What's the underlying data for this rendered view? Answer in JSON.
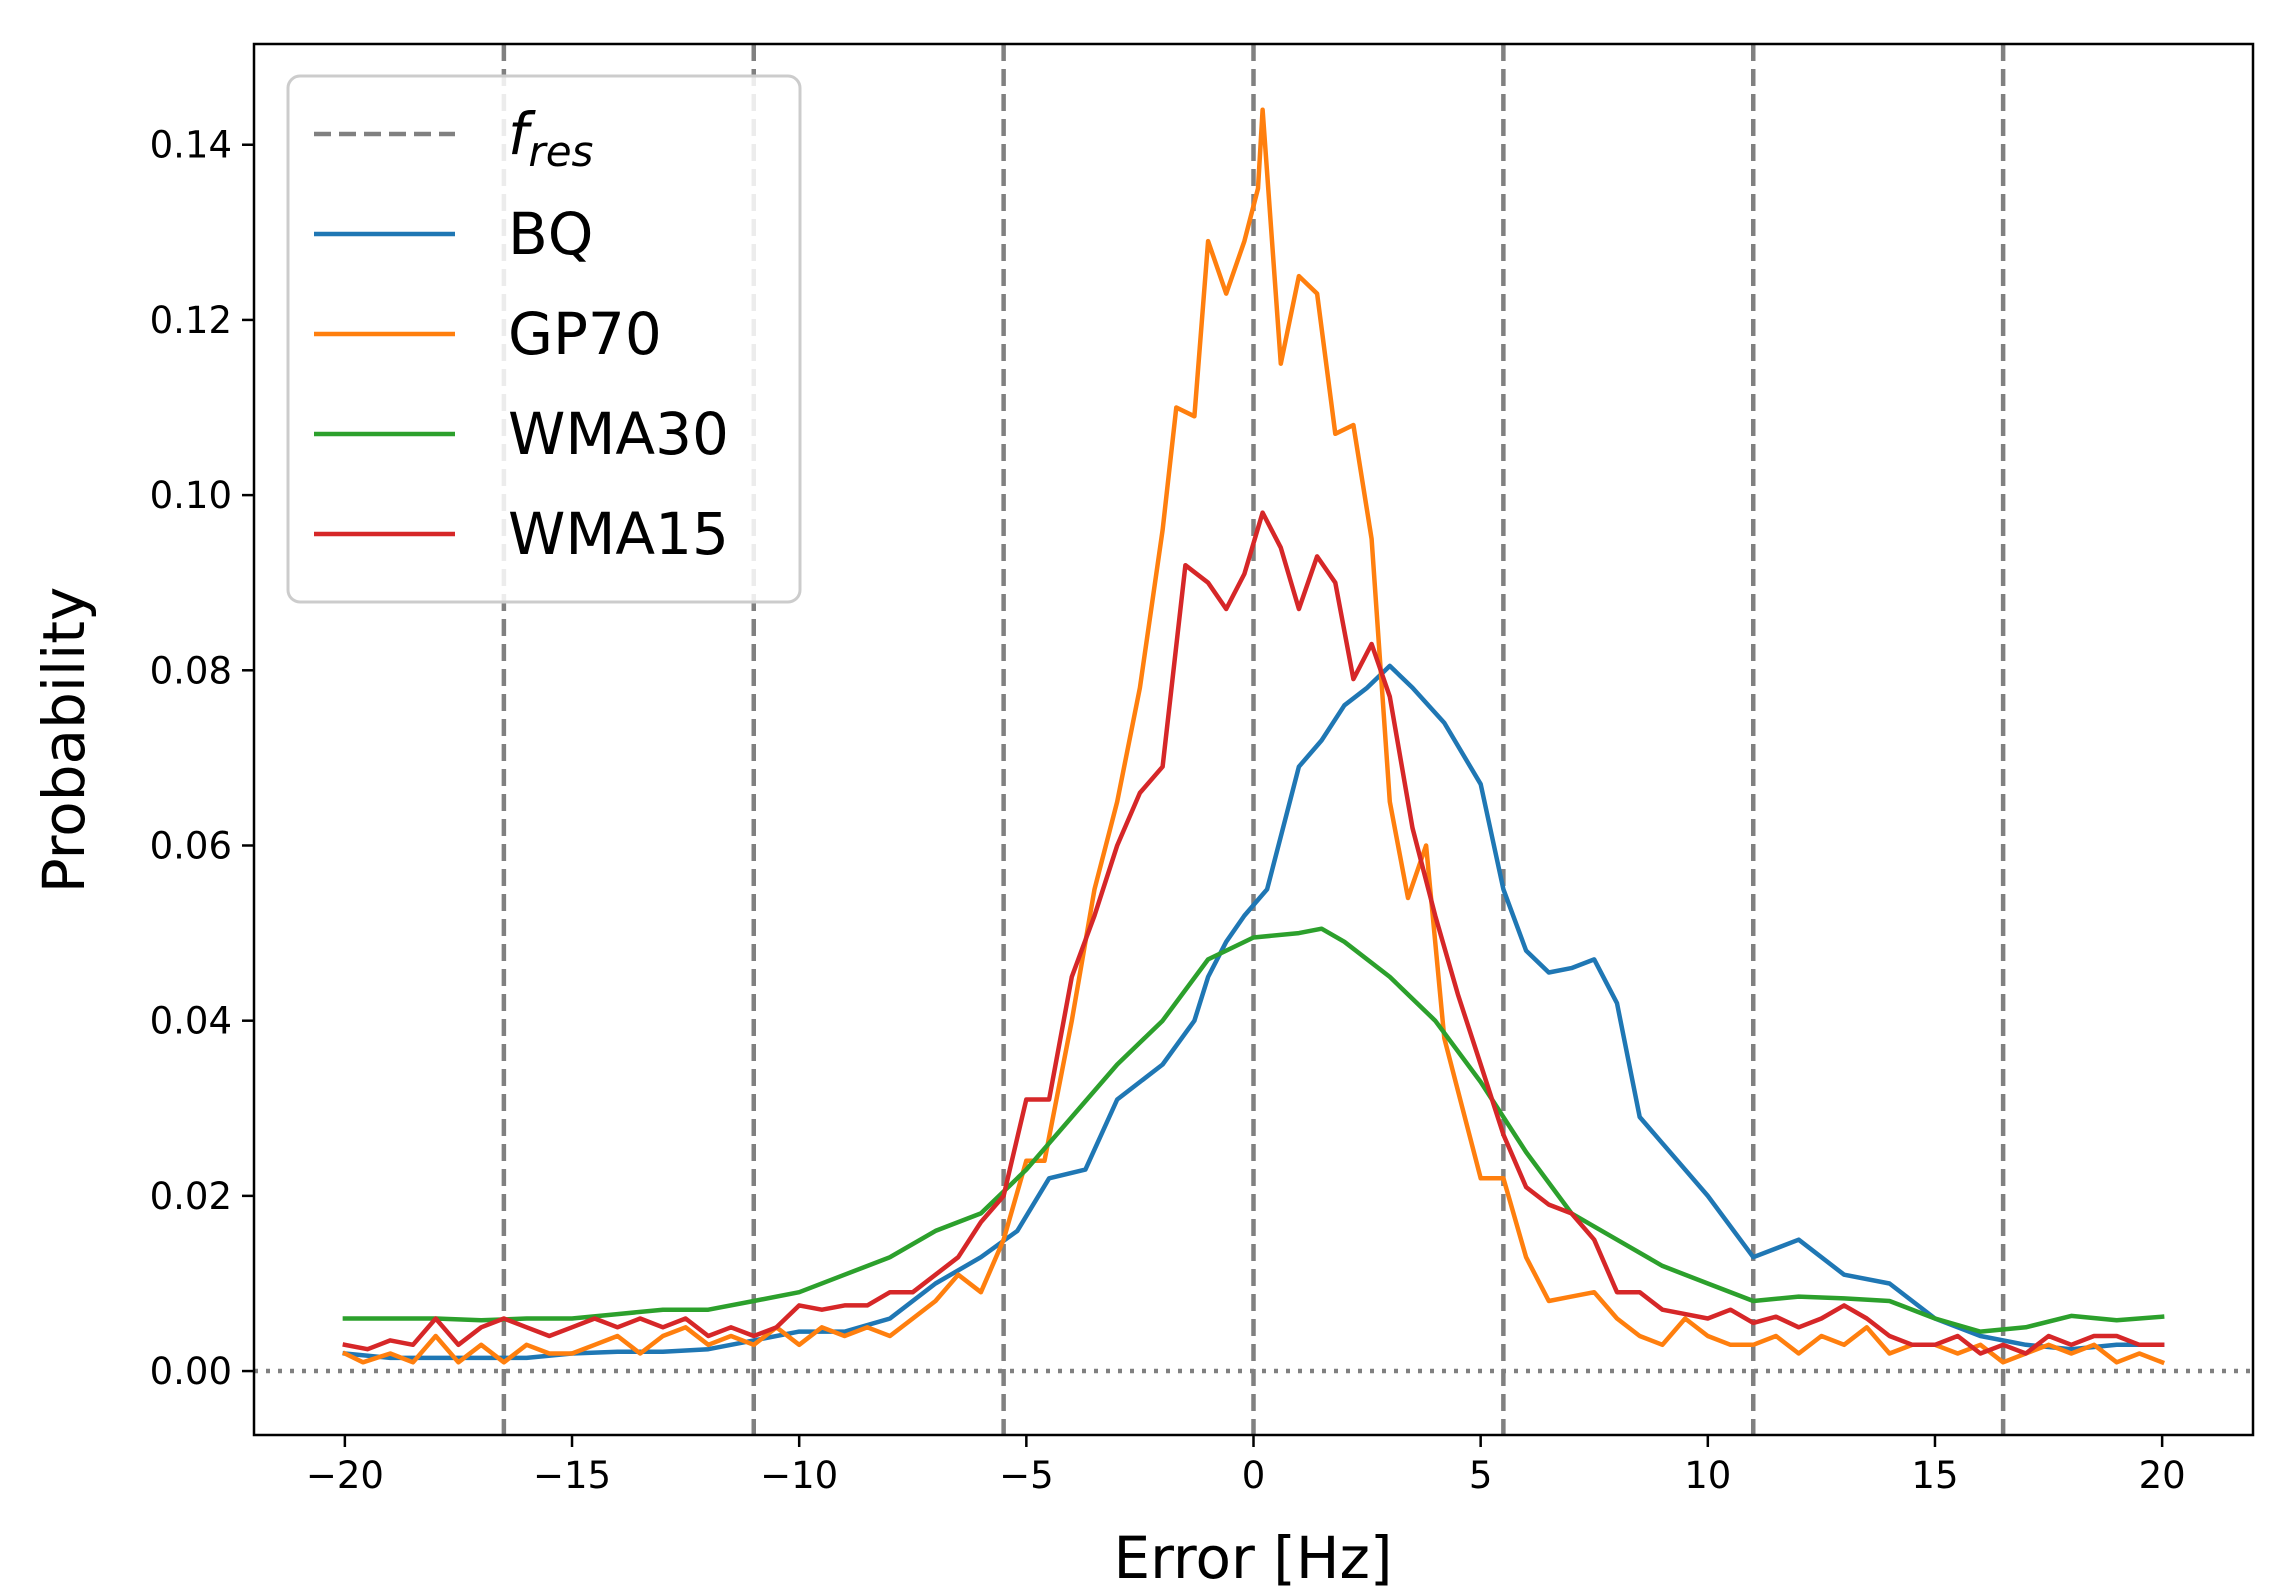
{
  "chart_data": {
    "type": "line",
    "title": "",
    "xlabel": "Error [Hz]",
    "ylabel": "Probability",
    "xlim": [
      -22,
      22
    ],
    "ylim": [
      -0.0073,
      0.1515
    ],
    "xticks": [
      -20,
      -15,
      -10,
      -5,
      0,
      5,
      10,
      15,
      20
    ],
    "xtick_labels": [
      "−20",
      "−15",
      "−10",
      "−5",
      "0",
      "5",
      "10",
      "15",
      "20"
    ],
    "yticks": [
      0.0,
      0.02,
      0.04,
      0.06,
      0.08,
      0.1,
      0.12,
      0.14
    ],
    "ytick_labels": [
      "0.00",
      "0.02",
      "0.04",
      "0.06",
      "0.08",
      "0.10",
      "0.12",
      "0.14"
    ],
    "grid": false,
    "legend_position": "top-left",
    "reference_lines": {
      "f_res_label_base": "f",
      "f_res_label_sub": "res",
      "color": "#808080",
      "x": [
        -16.5,
        -11,
        -5.5,
        0,
        5.5,
        11,
        16.5
      ],
      "zero_line_y": 0
    },
    "series": [
      {
        "name": "BQ",
        "color": "#1f77b4",
        "points": [
          [
            -20,
            0.002
          ],
          [
            -19,
            0.0015
          ],
          [
            -18,
            0.0015
          ],
          [
            -17,
            0.0015
          ],
          [
            -16,
            0.0015
          ],
          [
            -15,
            0.002
          ],
          [
            -14,
            0.0022
          ],
          [
            -13,
            0.0022
          ],
          [
            -12,
            0.0025
          ],
          [
            -11,
            0.0035
          ],
          [
            -10,
            0.0045
          ],
          [
            -9,
            0.0045
          ],
          [
            -8,
            0.006
          ],
          [
            -7,
            0.01
          ],
          [
            -6,
            0.013
          ],
          [
            -5.2,
            0.016
          ],
          [
            -4.5,
            0.022
          ],
          [
            -3.7,
            0.023
          ],
          [
            -3,
            0.031
          ],
          [
            -2,
            0.035
          ],
          [
            -1.3,
            0.04
          ],
          [
            -1,
            0.045
          ],
          [
            -0.6,
            0.049
          ],
          [
            -0.2,
            0.052
          ],
          [
            0.3,
            0.055
          ],
          [
            0.7,
            0.063
          ],
          [
            1,
            0.069
          ],
          [
            1.5,
            0.072
          ],
          [
            2,
            0.076
          ],
          [
            2.5,
            0.078
          ],
          [
            3,
            0.0805
          ],
          [
            3.5,
            0.078
          ],
          [
            4.2,
            0.074
          ],
          [
            5,
            0.067
          ],
          [
            5.5,
            0.055
          ],
          [
            6,
            0.048
          ],
          [
            6.5,
            0.0455
          ],
          [
            7,
            0.046
          ],
          [
            7.5,
            0.047
          ],
          [
            8,
            0.042
          ],
          [
            8.5,
            0.029
          ],
          [
            9,
            0.026
          ],
          [
            10,
            0.02
          ],
          [
            11,
            0.013
          ],
          [
            12,
            0.015
          ],
          [
            13,
            0.011
          ],
          [
            14,
            0.01
          ],
          [
            15,
            0.006
          ],
          [
            16,
            0.004
          ],
          [
            17,
            0.003
          ],
          [
            18,
            0.0025
          ],
          [
            19,
            0.003
          ],
          [
            20,
            0.003
          ]
        ]
      },
      {
        "name": "GP70",
        "color": "#ff7f0e",
        "points": [
          [
            -20,
            0.002
          ],
          [
            -19.6,
            0.001
          ],
          [
            -19,
            0.002
          ],
          [
            -18.5,
            0.001
          ],
          [
            -18,
            0.004
          ],
          [
            -17.5,
            0.001
          ],
          [
            -17,
            0.003
          ],
          [
            -16.5,
            0.001
          ],
          [
            -16,
            0.003
          ],
          [
            -15.5,
            0.002
          ],
          [
            -15,
            0.002
          ],
          [
            -14.5,
            0.003
          ],
          [
            -14,
            0.004
          ],
          [
            -13.5,
            0.002
          ],
          [
            -13,
            0.004
          ],
          [
            -12.5,
            0.005
          ],
          [
            -12,
            0.003
          ],
          [
            -11.5,
            0.004
          ],
          [
            -11,
            0.003
          ],
          [
            -10.5,
            0.005
          ],
          [
            -10,
            0.003
          ],
          [
            -9.5,
            0.005
          ],
          [
            -9,
            0.004
          ],
          [
            -8.5,
            0.005
          ],
          [
            -8,
            0.004
          ],
          [
            -7.5,
            0.006
          ],
          [
            -7,
            0.008
          ],
          [
            -6.5,
            0.011
          ],
          [
            -6,
            0.009
          ],
          [
            -5.5,
            0.015
          ],
          [
            -5,
            0.024
          ],
          [
            -4.6,
            0.024
          ],
          [
            -4,
            0.04
          ],
          [
            -3.5,
            0.055
          ],
          [
            -3,
            0.065
          ],
          [
            -2.5,
            0.078
          ],
          [
            -2,
            0.096
          ],
          [
            -1.7,
            0.11
          ],
          [
            -1.3,
            0.109
          ],
          [
            -1,
            0.129
          ],
          [
            -0.6,
            0.123
          ],
          [
            -0.2,
            0.129
          ],
          [
            0.1,
            0.135
          ],
          [
            0.2,
            0.144
          ],
          [
            0.6,
            0.115
          ],
          [
            1,
            0.125
          ],
          [
            1.4,
            0.123
          ],
          [
            1.8,
            0.107
          ],
          [
            2.2,
            0.108
          ],
          [
            2.6,
            0.095
          ],
          [
            3,
            0.065
          ],
          [
            3.4,
            0.054
          ],
          [
            3.8,
            0.06
          ],
          [
            4.2,
            0.038
          ],
          [
            4.6,
            0.03
          ],
          [
            5,
            0.022
          ],
          [
            5.5,
            0.022
          ],
          [
            6,
            0.013
          ],
          [
            6.5,
            0.008
          ],
          [
            7,
            0.0085
          ],
          [
            7.5,
            0.009
          ],
          [
            8,
            0.006
          ],
          [
            8.5,
            0.004
          ],
          [
            9,
            0.003
          ],
          [
            9.5,
            0.006
          ],
          [
            10,
            0.004
          ],
          [
            10.5,
            0.003
          ],
          [
            11,
            0.003
          ],
          [
            11.5,
            0.004
          ],
          [
            12,
            0.002
          ],
          [
            12.5,
            0.004
          ],
          [
            13,
            0.003
          ],
          [
            13.5,
            0.005
          ],
          [
            14,
            0.002
          ],
          [
            14.5,
            0.003
          ],
          [
            15,
            0.003
          ],
          [
            15.5,
            0.002
          ],
          [
            16,
            0.003
          ],
          [
            16.5,
            0.001
          ],
          [
            17,
            0.002
          ],
          [
            17.5,
            0.003
          ],
          [
            18,
            0.002
          ],
          [
            18.5,
            0.003
          ],
          [
            19,
            0.001
          ],
          [
            19.5,
            0.002
          ],
          [
            20,
            0.001
          ]
        ]
      },
      {
        "name": "WMA30",
        "color": "#2ca02c",
        "points": [
          [
            -20,
            0.006
          ],
          [
            -19,
            0.006
          ],
          [
            -18,
            0.006
          ],
          [
            -17,
            0.0058
          ],
          [
            -16,
            0.006
          ],
          [
            -15,
            0.006
          ],
          [
            -14,
            0.0065
          ],
          [
            -13,
            0.007
          ],
          [
            -12,
            0.007
          ],
          [
            -11,
            0.008
          ],
          [
            -10,
            0.009
          ],
          [
            -9,
            0.011
          ],
          [
            -8,
            0.013
          ],
          [
            -7,
            0.016
          ],
          [
            -6,
            0.018
          ],
          [
            -5,
            0.023
          ],
          [
            -4,
            0.029
          ],
          [
            -3,
            0.035
          ],
          [
            -2,
            0.04
          ],
          [
            -1,
            0.047
          ],
          [
            0,
            0.0495
          ],
          [
            1,
            0.05
          ],
          [
            1.5,
            0.0505
          ],
          [
            2,
            0.049
          ],
          [
            3,
            0.045
          ],
          [
            4,
            0.04
          ],
          [
            5,
            0.033
          ],
          [
            6,
            0.025
          ],
          [
            7,
            0.018
          ],
          [
            8,
            0.015
          ],
          [
            9,
            0.012
          ],
          [
            10,
            0.01
          ],
          [
            11,
            0.008
          ],
          [
            12,
            0.0085
          ],
          [
            13,
            0.0083
          ],
          [
            14,
            0.008
          ],
          [
            15,
            0.006
          ],
          [
            16,
            0.0045
          ],
          [
            17,
            0.005
          ],
          [
            18,
            0.0063
          ],
          [
            19,
            0.0058
          ],
          [
            20,
            0.0062
          ]
        ]
      },
      {
        "name": "WMA15",
        "color": "#d62728",
        "points": [
          [
            -20,
            0.003
          ],
          [
            -19.5,
            0.0025
          ],
          [
            -19,
            0.0035
          ],
          [
            -18.5,
            0.003
          ],
          [
            -18,
            0.006
          ],
          [
            -17.5,
            0.003
          ],
          [
            -17,
            0.005
          ],
          [
            -16.5,
            0.006
          ],
          [
            -16,
            0.005
          ],
          [
            -15.5,
            0.004
          ],
          [
            -15,
            0.005
          ],
          [
            -14.5,
            0.006
          ],
          [
            -14,
            0.005
          ],
          [
            -13.5,
            0.006
          ],
          [
            -13,
            0.005
          ],
          [
            -12.5,
            0.006
          ],
          [
            -12,
            0.004
          ],
          [
            -11.5,
            0.005
          ],
          [
            -11,
            0.004
          ],
          [
            -10.5,
            0.005
          ],
          [
            -10,
            0.0075
          ],
          [
            -9.5,
            0.007
          ],
          [
            -9,
            0.0075
          ],
          [
            -8.5,
            0.0075
          ],
          [
            -8,
            0.009
          ],
          [
            -7.5,
            0.009
          ],
          [
            -7,
            0.011
          ],
          [
            -6.5,
            0.013
          ],
          [
            -6,
            0.017
          ],
          [
            -5.5,
            0.02
          ],
          [
            -5,
            0.031
          ],
          [
            -4.5,
            0.031
          ],
          [
            -4,
            0.045
          ],
          [
            -3.5,
            0.052
          ],
          [
            -3,
            0.06
          ],
          [
            -2.5,
            0.066
          ],
          [
            -2,
            0.069
          ],
          [
            -1.5,
            0.092
          ],
          [
            -1,
            0.09
          ],
          [
            -0.6,
            0.087
          ],
          [
            -0.2,
            0.091
          ],
          [
            0.2,
            0.098
          ],
          [
            0.6,
            0.094
          ],
          [
            1,
            0.087
          ],
          [
            1.4,
            0.093
          ],
          [
            1.8,
            0.09
          ],
          [
            2.2,
            0.079
          ],
          [
            2.6,
            0.083
          ],
          [
            3,
            0.077
          ],
          [
            3.5,
            0.062
          ],
          [
            4,
            0.052
          ],
          [
            4.5,
            0.043
          ],
          [
            5,
            0.035
          ],
          [
            5.5,
            0.027
          ],
          [
            6,
            0.021
          ],
          [
            6.5,
            0.019
          ],
          [
            7,
            0.018
          ],
          [
            7.5,
            0.015
          ],
          [
            8,
            0.009
          ],
          [
            8.5,
            0.009
          ],
          [
            9,
            0.007
          ],
          [
            9.5,
            0.0065
          ],
          [
            10,
            0.006
          ],
          [
            10.5,
            0.007
          ],
          [
            11,
            0.0055
          ],
          [
            11.5,
            0.0062
          ],
          [
            12,
            0.005
          ],
          [
            12.5,
            0.006
          ],
          [
            13,
            0.0075
          ],
          [
            13.5,
            0.006
          ],
          [
            14,
            0.004
          ],
          [
            14.5,
            0.003
          ],
          [
            15,
            0.003
          ],
          [
            15.5,
            0.004
          ],
          [
            16,
            0.002
          ],
          [
            16.5,
            0.003
          ],
          [
            17,
            0.002
          ],
          [
            17.5,
            0.004
          ],
          [
            18,
            0.003
          ],
          [
            18.5,
            0.004
          ],
          [
            19,
            0.004
          ],
          [
            19.5,
            0.003
          ],
          [
            20,
            0.003
          ]
        ]
      }
    ]
  }
}
